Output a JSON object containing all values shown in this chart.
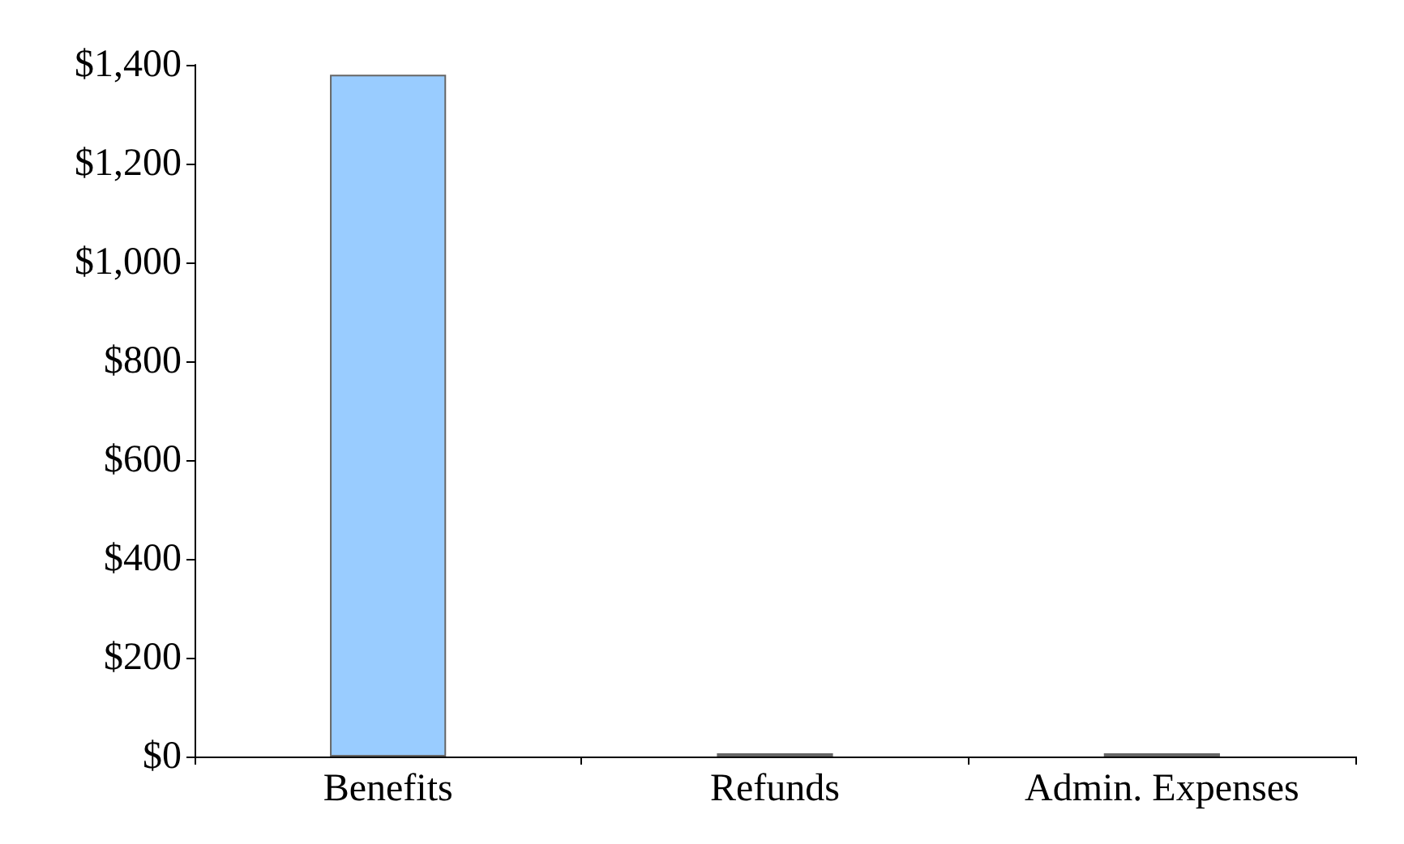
{
  "chart_data": {
    "type": "bar",
    "categories": [
      "Benefits",
      "Refunds",
      "Admin. Expenses"
    ],
    "values": [
      1380,
      0,
      0
    ],
    "colors": [
      "#99ccff",
      "#99cccc",
      "#c0c0c0"
    ],
    "ylim": [
      0,
      1400
    ],
    "yticks": [
      {
        "value": 0,
        "label": "$0"
      },
      {
        "value": 200,
        "label": "$200"
      },
      {
        "value": 400,
        "label": "$400"
      },
      {
        "value": 600,
        "label": "$600"
      },
      {
        "value": 800,
        "label": "$800"
      },
      {
        "value": 1000,
        "label": "$1,000"
      },
      {
        "value": 1200,
        "label": "$1,200"
      },
      {
        "value": 1400,
        "label": "$1,400"
      }
    ],
    "grid": false
  }
}
